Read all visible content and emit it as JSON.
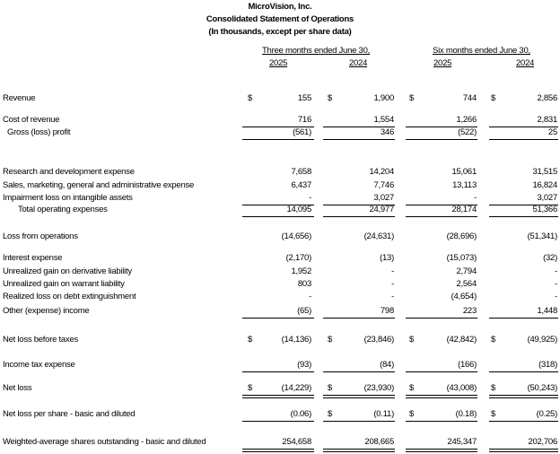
{
  "header": {
    "company": "MicroVision, Inc.",
    "statement": "Consolidated Statement of Operations",
    "units": "(In thousands, except per share data)"
  },
  "periods": {
    "three_months": "Three months ended June 30,",
    "six_months": "Six months ended June 30,",
    "years": [
      "2025",
      "2024",
      "2025",
      "2024"
    ]
  },
  "currency_symbol": "$",
  "rows": [
    {
      "label": "Revenue",
      "values": [
        "155",
        "1,900",
        "744",
        "2,856"
      ],
      "dollar": [
        true,
        true,
        true,
        true
      ],
      "indent": 0,
      "line": ""
    },
    {
      "label": "Cost of revenue",
      "values": [
        "716",
        "1,554",
        "1,266",
        "2,831"
      ],
      "dollar": [
        false,
        false,
        false,
        false
      ],
      "indent": 0,
      "line": "single"
    },
    {
      "label": "Gross (loss) profit",
      "values": [
        "(561)",
        "346",
        "(522)",
        "25"
      ],
      "dollar": [
        false,
        false,
        false,
        false
      ],
      "indent": 1,
      "line": "single"
    },
    {
      "label": "Research and development expense",
      "values": [
        "7,658",
        "14,204",
        "15,061",
        "31,515"
      ],
      "dollar": [
        false,
        false,
        false,
        false
      ],
      "indent": 0,
      "line": ""
    },
    {
      "label": "Sales, marketing, general and administrative expense",
      "values": [
        "6,437",
        "7,746",
        "13,113",
        "16,824"
      ],
      "dollar": [
        false,
        false,
        false,
        false
      ],
      "indent": 0,
      "line": ""
    },
    {
      "label": "Impairment loss on intangible assets",
      "values": [
        "-",
        "3,027",
        "-",
        "3,027"
      ],
      "dollar": [
        false,
        false,
        false,
        false
      ],
      "indent": 0,
      "line": "single"
    },
    {
      "label": "Total operating expenses",
      "values": [
        "14,095",
        "24,977",
        "28,174",
        "51,366"
      ],
      "dollar": [
        false,
        false,
        false,
        false
      ],
      "indent": 2,
      "line": "single"
    },
    {
      "label": "Loss from operations",
      "values": [
        "(14,656)",
        "(24,631)",
        "(28,696)",
        "(51,341)"
      ],
      "dollar": [
        false,
        false,
        false,
        false
      ],
      "indent": 0,
      "line": ""
    },
    {
      "label": "Interest expense",
      "values": [
        "(2,170)",
        "(13)",
        "(15,073)",
        "(32)"
      ],
      "dollar": [
        false,
        false,
        false,
        false
      ],
      "indent": 0,
      "line": ""
    },
    {
      "label": "Unrealized gain on derivative liability",
      "values": [
        "1,952",
        "-",
        "2,794",
        "-"
      ],
      "dollar": [
        false,
        false,
        false,
        false
      ],
      "indent": 0,
      "line": ""
    },
    {
      "label": "Unrealized gain on warrant liability",
      "values": [
        "803",
        "-",
        "2,564",
        "-"
      ],
      "dollar": [
        false,
        false,
        false,
        false
      ],
      "indent": 0,
      "line": ""
    },
    {
      "label": "Realized loss on debt extinguishment",
      "values": [
        "-",
        "-",
        "(4,654)",
        "-"
      ],
      "dollar": [
        false,
        false,
        false,
        false
      ],
      "indent": 0,
      "line": ""
    },
    {
      "label": "Other (expense) income",
      "values": [
        "(65)",
        "798",
        "223",
        "1,448"
      ],
      "dollar": [
        false,
        false,
        false,
        false
      ],
      "indent": 0,
      "line": "single"
    },
    {
      "label": "Net loss before taxes",
      "values": [
        "(14,136)",
        "(23,846)",
        "(42,842)",
        "(49,925)"
      ],
      "dollar": [
        true,
        true,
        true,
        true
      ],
      "indent": 0,
      "line": ""
    },
    {
      "label": "Income tax expense",
      "values": [
        "(93)",
        "(84)",
        "(166)",
        "(318)"
      ],
      "dollar": [
        false,
        false,
        false,
        false
      ],
      "indent": 0,
      "line": "single"
    },
    {
      "label": "Net loss",
      "values": [
        "(14,229)",
        "(23,930)",
        "(43,008)",
        "(50,243)"
      ],
      "dollar": [
        true,
        true,
        true,
        true
      ],
      "indent": 0,
      "line": "double",
      "underline_dollar": true
    },
    {
      "label": "Net loss per share - basic and diluted",
      "values": [
        "(0.06)",
        "(0.11)",
        "(0.18)",
        "(0.25)"
      ],
      "dollar": [
        false,
        true,
        true,
        true
      ],
      "indent": 0,
      "line": "single"
    },
    {
      "label": "Weighted-average shares outstanding - basic and diluted",
      "values": [
        "254,658",
        "208,665",
        "245,347",
        "202,706"
      ],
      "dollar": [
        false,
        false,
        false,
        false
      ],
      "indent": 0,
      "line": "double"
    }
  ]
}
